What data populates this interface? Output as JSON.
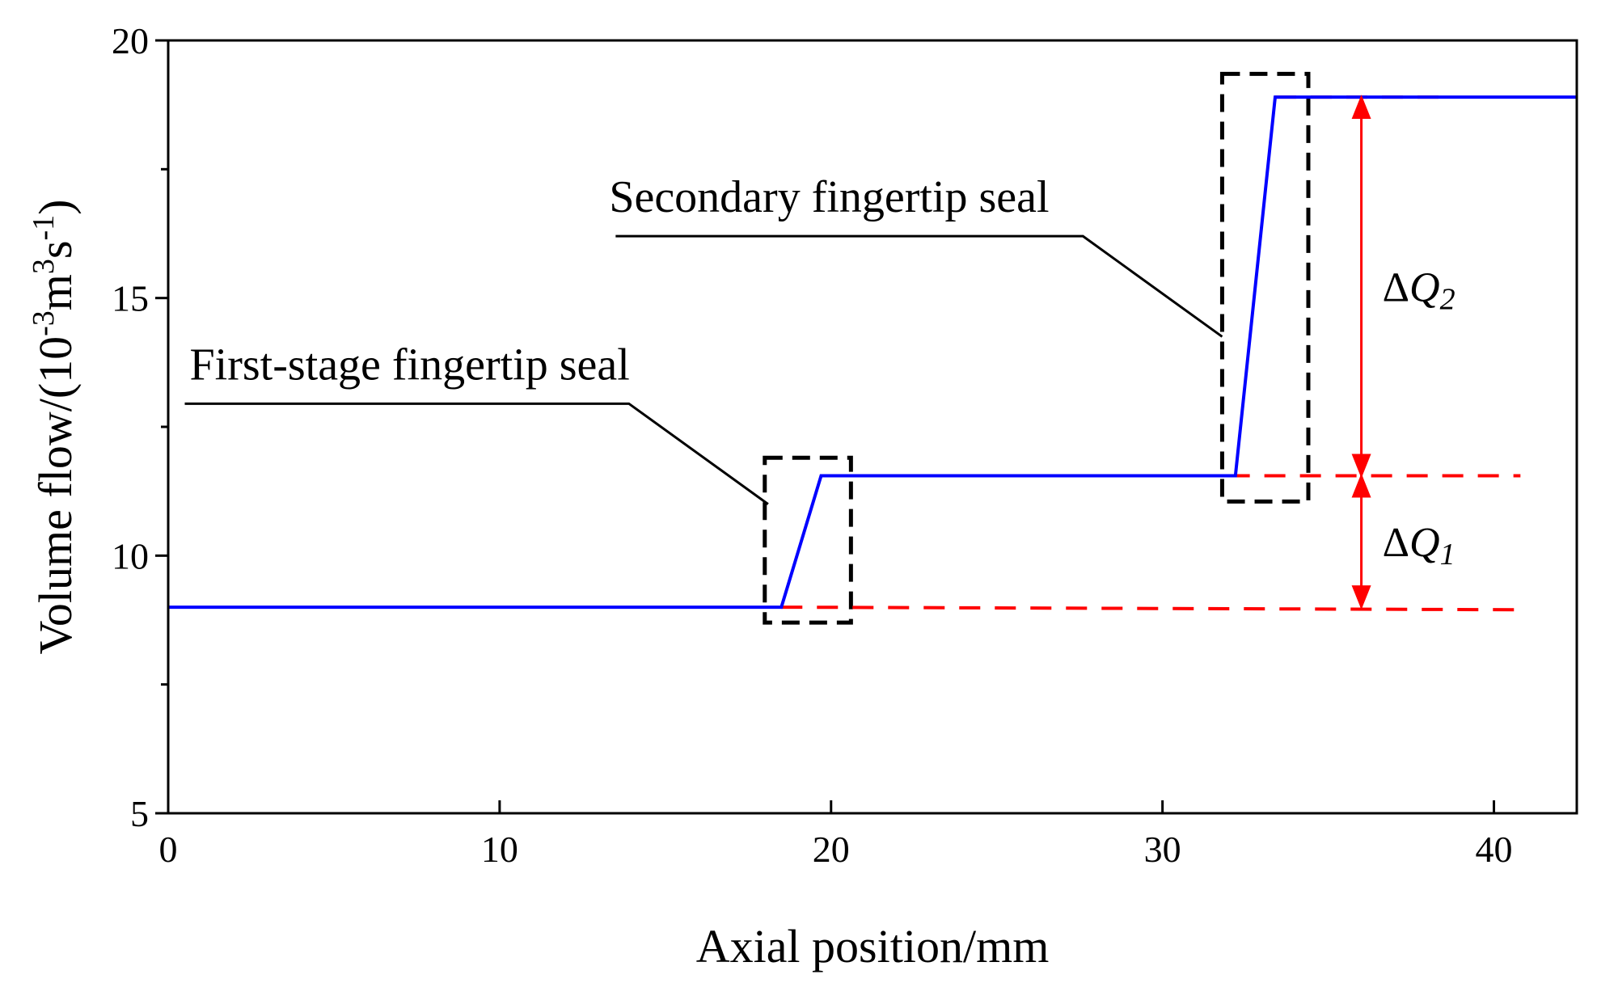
{
  "chart_data": {
    "type": "line",
    "xlabel": "Axial position/mm",
    "ylabel_prefix": "Volume flow/(10",
    "ylabel_exp1": "-3",
    "ylabel_mid": "m",
    "ylabel_exp2": "3",
    "ylabel_s": "s",
    "ylabel_exp3": "-1",
    "ylabel_suffix": ")",
    "xlim": [
      0,
      42.5
    ],
    "ylim": [
      5,
      20
    ],
    "xticks": [
      0,
      10,
      20,
      30,
      40
    ],
    "yticks": [
      5,
      10,
      15,
      20
    ],
    "yminor_ticks": [
      7.5,
      12.5,
      17.5
    ],
    "grid": false,
    "series": [
      {
        "color": "#0000ff",
        "style": "solid",
        "x": [
          0,
          18.5,
          19.7,
          32.2,
          33.4,
          42.5
        ],
        "y": [
          9.0,
          9.0,
          11.55,
          11.55,
          18.9,
          18.9
        ]
      }
    ],
    "reference_lines": [
      {
        "color": "#ff0000",
        "style": "dashed",
        "x": [
          18.5,
          40.8
        ],
        "y": [
          9.0,
          8.95
        ]
      },
      {
        "color": "#ff0000",
        "style": "dashed",
        "x": [
          32.0,
          40.8
        ],
        "y": [
          11.55,
          11.55
        ]
      },
      {
        "color": "#ff0000",
        "style": "dashed",
        "x": [
          33.4,
          38.5
        ],
        "y": [
          18.9,
          18.9
        ]
      }
    ],
    "highlight_boxes": [
      {
        "color": "#000000",
        "style": "dashed",
        "x": [
          18.0,
          20.6
        ],
        "y": [
          8.7,
          11.9
        ]
      },
      {
        "color": "#000000",
        "style": "dashed",
        "x": [
          31.8,
          34.4
        ],
        "y": [
          11.05,
          19.35
        ]
      }
    ],
    "annotations": [
      {
        "label": "First-stage fingertip seal",
        "leader_x": [
          0.5,
          13.9,
          18.1
        ],
        "leader_y": [
          12.95,
          12.95,
          11.0
        ]
      },
      {
        "label": "Secondary fingertip seal",
        "leader_x": [
          13.5,
          27.6,
          31.8
        ],
        "leader_y": [
          16.2,
          16.2,
          14.25
        ]
      }
    ],
    "delta_labels": [
      {
        "delta": "Δ",
        "symbol": "Q",
        "sub": "1",
        "arrow_x": 36.0,
        "arrow_y": [
          9.0,
          11.55
        ]
      },
      {
        "delta": "Δ",
        "symbol": "Q",
        "sub": "2",
        "arrow_x": 36.0,
        "arrow_y": [
          11.55,
          18.9
        ]
      }
    ]
  }
}
